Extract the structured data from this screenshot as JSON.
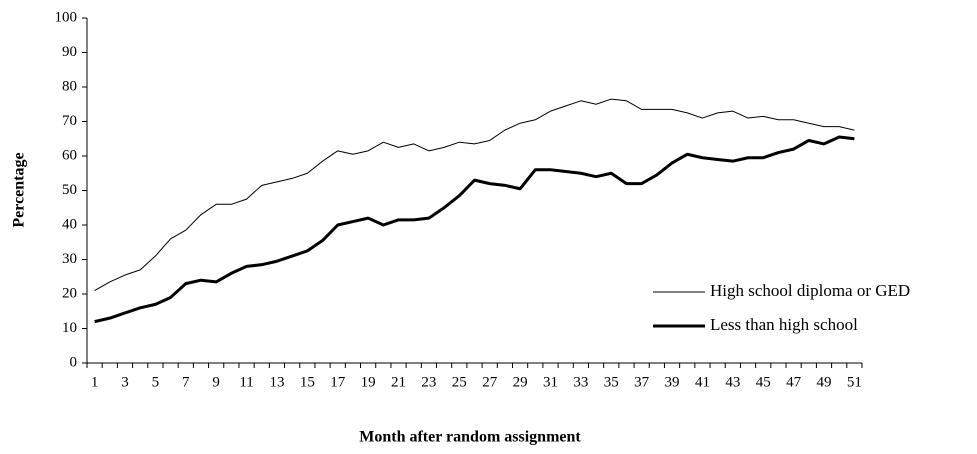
{
  "chart_data": {
    "type": "line",
    "x_label": "Month after random assignment",
    "y_label": "Percentage",
    "categories": [
      "1",
      null,
      "3",
      null,
      "5",
      null,
      "7",
      null,
      "9",
      null,
      "11",
      null,
      "13",
      null,
      "15",
      null,
      "17",
      null,
      "19",
      null,
      "21",
      null,
      "23",
      null,
      "25",
      null,
      "27",
      null,
      "29",
      null,
      "31",
      null,
      "33",
      null,
      "35",
      null,
      "37",
      null,
      "39",
      null,
      "41",
      null,
      "43",
      null,
      "45",
      null,
      "47",
      null,
      "49",
      null,
      "51"
    ],
    "series": [
      {
        "name": "High school diploma or GED",
        "color": "#000000",
        "width": 1,
        "values": [
          21,
          23.5,
          25.5,
          27,
          31,
          36,
          38.5,
          43,
          46,
          46,
          47.5,
          51.5,
          52.5,
          53.5,
          55,
          58.5,
          61.5,
          60.5,
          61.5,
          64,
          62.5,
          63.5,
          61.5,
          62.5,
          64,
          63.5,
          64.5,
          67.5,
          69.5,
          70.5,
          73,
          74.5,
          76,
          75,
          76.5,
          76,
          73.5,
          73.5,
          73.5,
          72.5,
          71,
          72.5,
          73,
          71,
          71.5,
          70.5,
          70.5,
          69.5,
          68.5,
          68.5,
          67.5
        ]
      },
      {
        "name": "Less than high school",
        "color": "#000000",
        "width": 3,
        "values": [
          12,
          13,
          14.5,
          16,
          17,
          19,
          23,
          24,
          23.5,
          26,
          28,
          28.5,
          29.5,
          31,
          32.5,
          35.5,
          40,
          41,
          42,
          40,
          41.5,
          41.5,
          42,
          45,
          48.5,
          53,
          52,
          51.5,
          50.5,
          56,
          56,
          55.5,
          55,
          54,
          55,
          52,
          52,
          54.5,
          58,
          60.5,
          59.5,
          59,
          58.5,
          59.5,
          59.5,
          61,
          62,
          64.5,
          63.5,
          65.5,
          65
        ]
      }
    ],
    "ylim": [
      0,
      100
    ],
    "yticks": [
      0,
      10,
      20,
      30,
      40,
      50,
      60,
      70,
      80,
      90,
      100
    ],
    "grid": false,
    "legend": "right"
  }
}
